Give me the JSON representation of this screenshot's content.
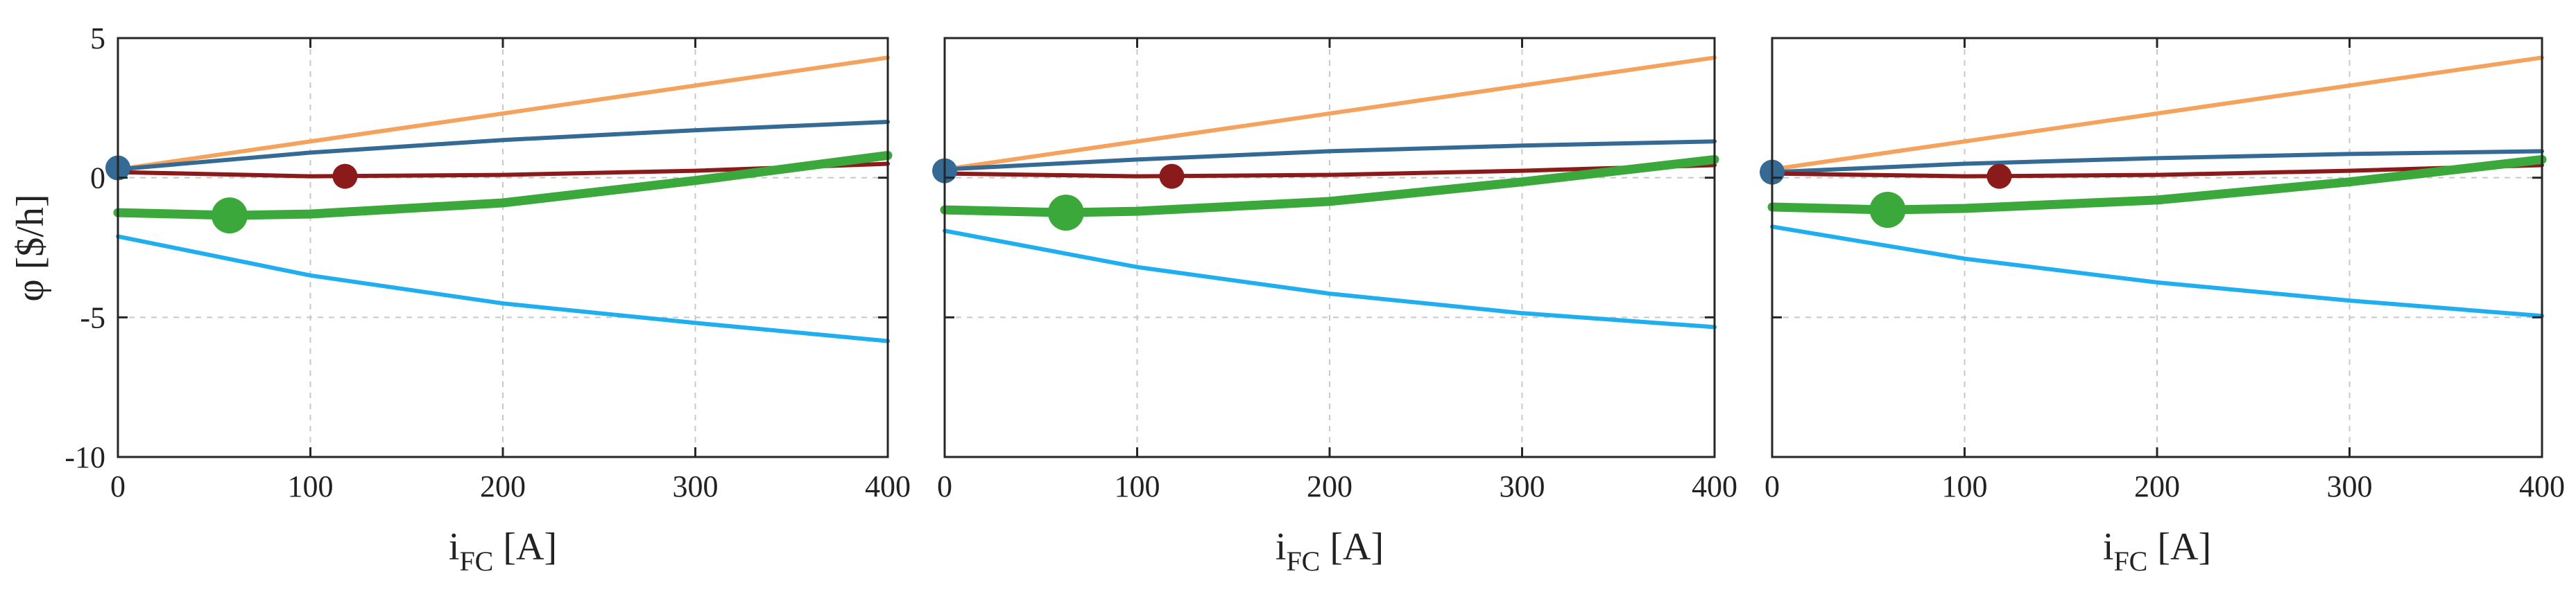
{
  "chart_data": [
    {
      "type": "line",
      "xlabel": "i",
      "xlabel_subscript": "FC",
      "xlabel_unit": " [A]",
      "ylabel": "φ [$/h]",
      "xlim": [
        0,
        400
      ],
      "ylim": [
        -10,
        5
      ],
      "xticks": [
        "0",
        "100",
        "200",
        "300",
        "400"
      ],
      "yticks": [
        "5",
        "0",
        "-5",
        "-10"
      ],
      "grid": true,
      "series": [
        {
          "name": "orange",
          "color": "#F5A25D",
          "width": 1,
          "x": [
            0,
            400
          ],
          "y": [
            0.3,
            4.3
          ]
        },
        {
          "name": "blue",
          "color": "#346A93",
          "width": 1,
          "x": [
            0,
            100,
            200,
            300,
            400
          ],
          "y": [
            0.3,
            0.9,
            1.35,
            1.7,
            2.0
          ]
        },
        {
          "name": "dark-red",
          "color": "#8B1A1A",
          "width": 1,
          "x": [
            0,
            100,
            200,
            300,
            400
          ],
          "y": [
            0.2,
            0.05,
            0.1,
            0.25,
            0.5
          ]
        },
        {
          "name": "green",
          "color": "#3BA83B",
          "width": 2,
          "x": [
            0,
            60,
            100,
            200,
            300,
            400
          ],
          "y": [
            -1.25,
            -1.35,
            -1.3,
            -0.9,
            -0.1,
            0.8
          ]
        },
        {
          "name": "light-blue",
          "color": "#1FAEEF",
          "width": 1,
          "x": [
            0,
            100,
            200,
            300,
            400
          ],
          "y": [
            -2.1,
            -3.5,
            -4.5,
            -5.2,
            -5.85
          ]
        }
      ],
      "markers": [
        {
          "name": "blue-marker",
          "x": 0,
          "y": 0.35,
          "color": "#346A93",
          "size": "medium"
        },
        {
          "name": "red-marker",
          "x": 118,
          "y": 0.05,
          "color": "#8B1A1A",
          "size": "medium"
        },
        {
          "name": "green-marker",
          "x": 58,
          "y": -1.35,
          "color": "#3BA83B",
          "size": "large"
        }
      ]
    },
    {
      "type": "line",
      "xlabel": "i",
      "xlabel_subscript": "FC",
      "xlabel_unit": " [A]",
      "ylabel": "",
      "xlim": [
        0,
        400
      ],
      "ylim": [
        -10,
        5
      ],
      "xticks": [
        "0",
        "100",
        "200",
        "300",
        "400"
      ],
      "yticks": [],
      "grid": true,
      "series": [
        {
          "name": "orange",
          "color": "#F5A25D",
          "width": 1,
          "x": [
            0,
            400
          ],
          "y": [
            0.3,
            4.3
          ]
        },
        {
          "name": "blue",
          "color": "#346A93",
          "width": 1,
          "x": [
            0,
            100,
            200,
            300,
            400
          ],
          "y": [
            0.3,
            0.65,
            0.95,
            1.15,
            1.3
          ]
        },
        {
          "name": "dark-red",
          "color": "#8B1A1A",
          "width": 1,
          "x": [
            0,
            100,
            200,
            300,
            400
          ],
          "y": [
            0.15,
            0.05,
            0.1,
            0.25,
            0.45
          ]
        },
        {
          "name": "green",
          "color": "#3BA83B",
          "width": 2,
          "x": [
            0,
            62,
            100,
            200,
            300,
            400
          ],
          "y": [
            -1.15,
            -1.25,
            -1.2,
            -0.85,
            -0.15,
            0.65
          ]
        },
        {
          "name": "light-blue",
          "color": "#1FAEEF",
          "width": 1,
          "x": [
            0,
            100,
            200,
            300,
            400
          ],
          "y": [
            -1.9,
            -3.2,
            -4.15,
            -4.85,
            -5.35
          ]
        }
      ],
      "markers": [
        {
          "name": "blue-marker",
          "x": 0,
          "y": 0.25,
          "color": "#346A93",
          "size": "medium"
        },
        {
          "name": "red-marker",
          "x": 118,
          "y": 0.05,
          "color": "#8B1A1A",
          "size": "medium"
        },
        {
          "name": "green-marker",
          "x": 63,
          "y": -1.25,
          "color": "#3BA83B",
          "size": "large"
        }
      ]
    },
    {
      "type": "line",
      "xlabel": "i",
      "xlabel_subscript": "FC",
      "xlabel_unit": " [A]",
      "ylabel": "",
      "xlim": [
        0,
        400
      ],
      "ylim": [
        -10,
        5
      ],
      "xticks": [
        "0",
        "100",
        "200",
        "300",
        "400"
      ],
      "yticks": [],
      "grid": true,
      "series": [
        {
          "name": "orange",
          "color": "#F5A25D",
          "width": 1,
          "x": [
            0,
            400
          ],
          "y": [
            0.3,
            4.3
          ]
        },
        {
          "name": "blue",
          "color": "#346A93",
          "width": 1,
          "x": [
            0,
            100,
            200,
            300,
            400
          ],
          "y": [
            0.2,
            0.5,
            0.7,
            0.85,
            0.95
          ]
        },
        {
          "name": "dark-red",
          "color": "#8B1A1A",
          "width": 1,
          "x": [
            0,
            100,
            200,
            300,
            400
          ],
          "y": [
            0.15,
            0.05,
            0.1,
            0.25,
            0.45
          ]
        },
        {
          "name": "green",
          "color": "#3BA83B",
          "width": 2,
          "x": [
            0,
            60,
            100,
            200,
            300,
            400
          ],
          "y": [
            -1.05,
            -1.15,
            -1.1,
            -0.8,
            -0.15,
            0.65
          ]
        },
        {
          "name": "light-blue",
          "color": "#1FAEEF",
          "width": 1,
          "x": [
            0,
            100,
            200,
            300,
            400
          ],
          "y": [
            -1.75,
            -2.9,
            -3.75,
            -4.4,
            -4.95
          ]
        }
      ],
      "markers": [
        {
          "name": "blue-marker",
          "x": 0,
          "y": 0.2,
          "color": "#346A93",
          "size": "medium"
        },
        {
          "name": "red-marker",
          "x": 118,
          "y": 0.05,
          "color": "#8B1A1A",
          "size": "medium"
        },
        {
          "name": "green-marker",
          "x": 60,
          "y": -1.15,
          "color": "#3BA83B",
          "size": "large"
        }
      ]
    }
  ]
}
